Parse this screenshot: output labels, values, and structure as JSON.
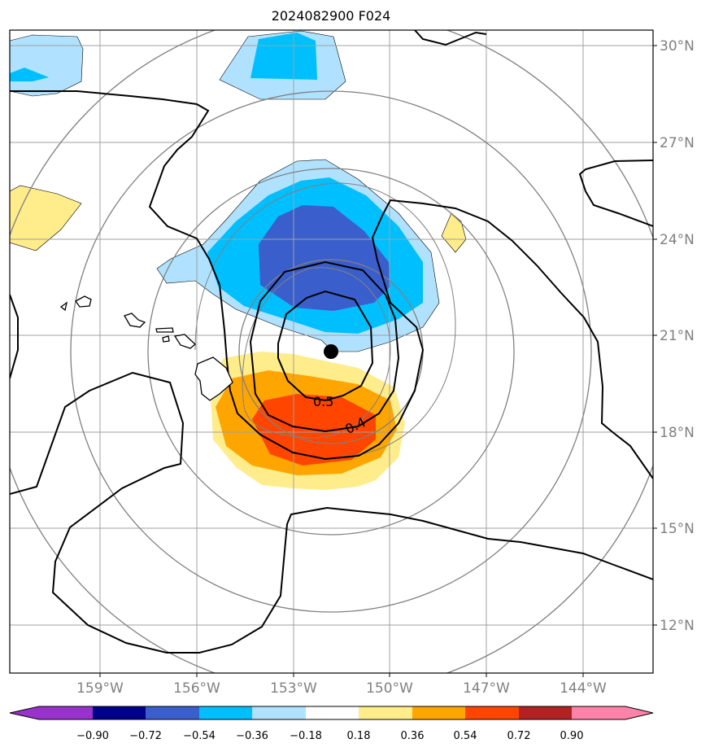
{
  "title": "2024082900 F024",
  "map": {
    "lat_ticks": [
      "30°N",
      "27°N",
      "24°N",
      "21°N",
      "18°N",
      "15°N",
      "12°N"
    ],
    "lon_ticks": [
      "159°W",
      "156°W",
      "153°W",
      "150°W",
      "147°W",
      "144°W"
    ],
    "contour_labels": [
      "0.5",
      "0.4"
    ],
    "storm_marker": "storm-center"
  },
  "colorbar": {
    "ticks": [
      "−0.90",
      "−0.72",
      "−0.54",
      "−0.36",
      "−0.18",
      "0.18",
      "0.36",
      "0.54",
      "0.72",
      "0.90"
    ],
    "colors": [
      "#9932CC",
      "#00008B",
      "#3A5FCD",
      "#00BFFF",
      "#B0E2FF",
      "#FFFFFF",
      "#FFEC8B",
      "#FFA500",
      "#FF4500",
      "#B22222",
      "#FF82AB"
    ]
  }
}
